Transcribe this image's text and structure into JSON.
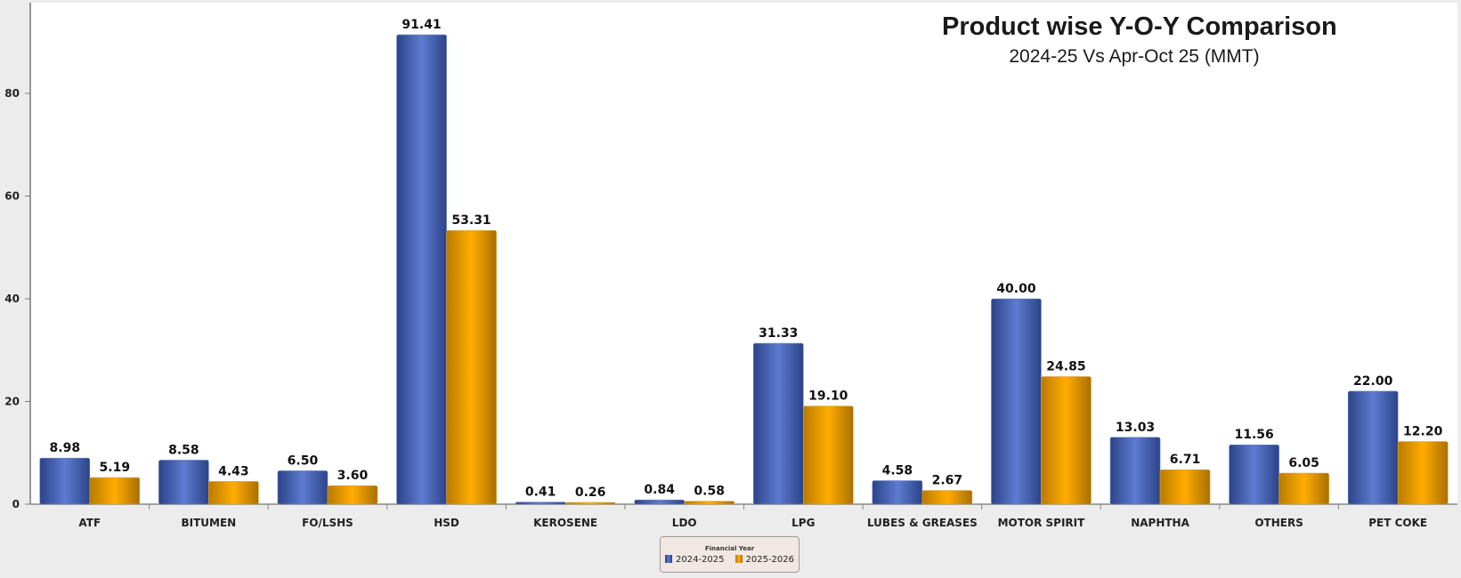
{
  "chart_data": {
    "type": "bar",
    "title": "Product wise Y-O-Y Comparison",
    "subtitle": "2024-25  Vs Apr-Oct 25 (MMT)",
    "xlabel": "",
    "ylabel": "",
    "ylim": [
      0,
      95
    ],
    "yticks": [
      0,
      20,
      40,
      60,
      80
    ],
    "grid": false,
    "categories": [
      "ATF",
      "BITUMEN",
      "FO/LSHS",
      "HSD",
      "KEROSENE",
      "LDO",
      "LPG",
      "LUBES & GREASES",
      "MOTOR SPIRIT",
      "NAPHTHA",
      "OTHERS",
      "PET COKE"
    ],
    "series": [
      {
        "name": "2024-2025",
        "color": "#4561b5",
        "values": [
          8.98,
          8.58,
          6.5,
          91.41,
          0.41,
          0.84,
          31.33,
          4.58,
          40.0,
          13.03,
          11.56,
          22.0
        ],
        "labels": [
          "8.98",
          "8.58",
          "6.50",
          "91.41",
          "0.41",
          "0.84",
          "31.33",
          "4.58",
          "40.00",
          "13.03",
          "11.56",
          "22.00"
        ]
      },
      {
        "name": "2025-2026",
        "color": "#f0a400",
        "values": [
          5.19,
          4.43,
          3.6,
          53.31,
          0.26,
          0.58,
          19.1,
          2.67,
          24.85,
          6.71,
          6.05,
          12.2
        ],
        "labels": [
          "5.19",
          "4.43",
          "3.60",
          "53.31",
          "0.26",
          "0.58",
          "19.10",
          "2.67",
          "24.85",
          "6.71",
          "6.05",
          "12.20"
        ]
      }
    ],
    "legend": {
      "title": "Financial Year",
      "placement": "bottom-center"
    }
  }
}
